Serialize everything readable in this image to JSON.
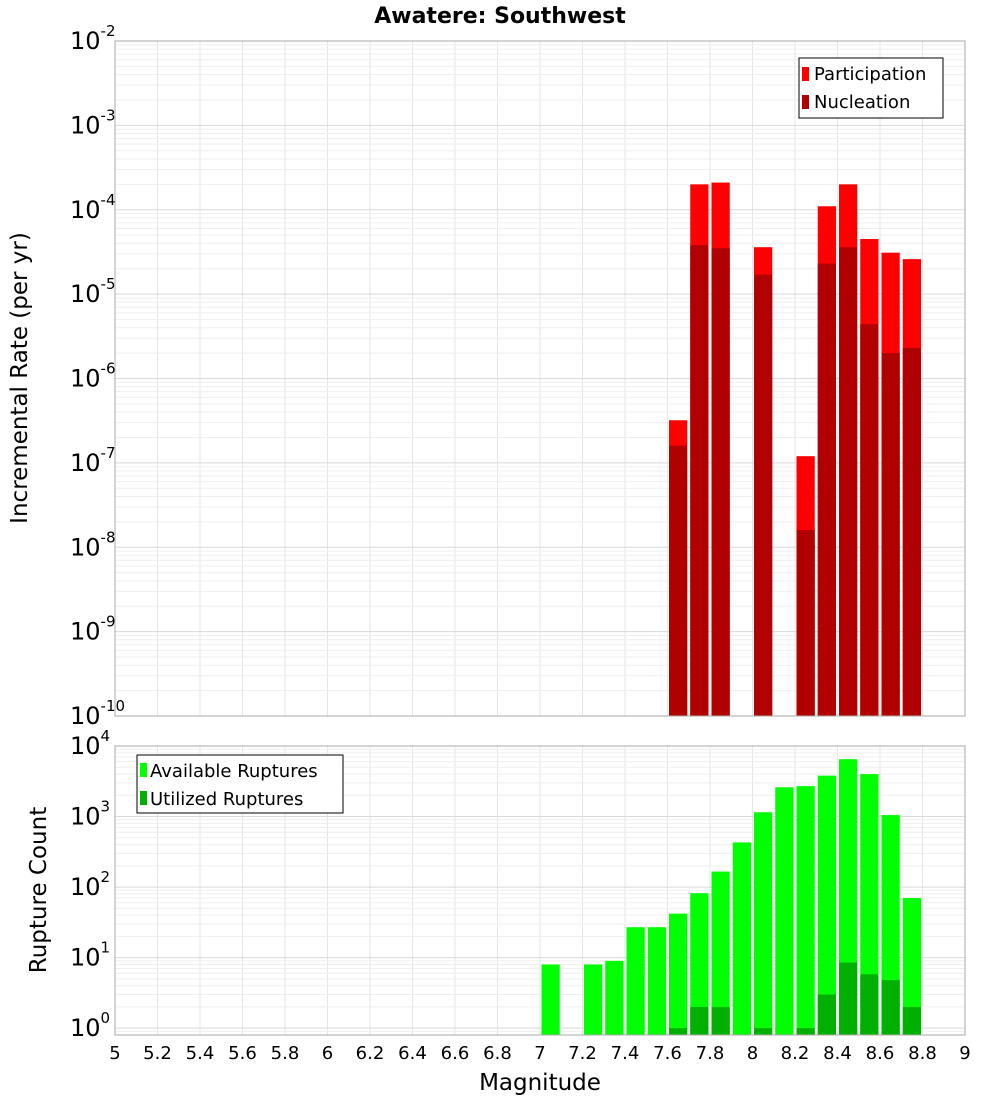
{
  "chart_data": [
    {
      "type": "bar",
      "title": "Awatere: Southwest",
      "xlabel": "",
      "ylabel": "Incremental Rate (per yr)",
      "yscale": "log",
      "xlim": [
        5,
        9
      ],
      "ylim": [
        1e-10,
        0.01
      ],
      "y_ticks": [
        {
          "base": "10",
          "exp": "-2"
        },
        {
          "base": "10",
          "exp": "-3"
        },
        {
          "base": "10",
          "exp": "-4"
        },
        {
          "base": "10",
          "exp": "-5"
        },
        {
          "base": "10",
          "exp": "-6"
        },
        {
          "base": "10",
          "exp": "-7"
        },
        {
          "base": "10",
          "exp": "-8"
        },
        {
          "base": "10",
          "exp": "-9"
        },
        {
          "base": "10",
          "exp": "-10"
        }
      ],
      "grid": true,
      "legend_position": "top-right",
      "colors": {
        "Participation": "#ff0000",
        "Nucleation": "#b00000"
      },
      "x": [
        7.65,
        7.75,
        7.85,
        8.05,
        8.25,
        8.35,
        8.45,
        8.55,
        8.65,
        8.75
      ],
      "series": [
        {
          "name": "Participation",
          "values": [
            3.2e-07,
            0.0002,
            0.00021,
            3.6e-05,
            1.2e-07,
            0.00011,
            0.0002,
            4.5e-05,
            3.1e-05,
            2.6e-05
          ]
        },
        {
          "name": "Nucleation",
          "values": [
            1.6e-07,
            3.8e-05,
            3.5e-05,
            1.7e-05,
            1.6e-08,
            2.3e-05,
            3.6e-05,
            4.4e-06,
            2e-06,
            2.3e-06
          ]
        }
      ]
    },
    {
      "type": "bar",
      "title": "",
      "xlabel": "Magnitude",
      "ylabel": "Rupture Count",
      "yscale": "log",
      "xlim": [
        5,
        9
      ],
      "ylim": [
        0.8,
        10000
      ],
      "x_ticks": [
        "5",
        "5.2",
        "5.4",
        "5.6",
        "5.8",
        "6",
        "6.2",
        "6.4",
        "6.6",
        "6.8",
        "7",
        "7.2",
        "7.4",
        "7.6",
        "7.8",
        "8",
        "8.2",
        "8.4",
        "8.6",
        "8.8",
        "9"
      ],
      "y_ticks": [
        {
          "value": 10000,
          "base": "10",
          "exp": "4"
        },
        {
          "value": 1000,
          "base": "10",
          "exp": "3"
        },
        {
          "value": 100,
          "base": "10",
          "exp": "2"
        },
        {
          "value": 10,
          "base": "10",
          "exp": "1"
        },
        {
          "value": 1,
          "base": "10",
          "exp": "0"
        }
      ],
      "grid": true,
      "legend_position": "top-left",
      "colors": {
        "Available Ruptures": "#00ff00",
        "Utilized Ruptures": "#00b000"
      },
      "x": [
        7.05,
        7.25,
        7.35,
        7.45,
        7.55,
        7.65,
        7.75,
        7.85,
        7.95,
        8.05,
        8.15,
        8.25,
        8.35,
        8.45,
        8.55,
        8.65,
        8.75
      ],
      "series": [
        {
          "name": "Available Ruptures",
          "values": [
            8,
            8,
            9,
            27,
            27,
            42,
            82,
            166,
            430,
            1150,
            2600,
            2700,
            3800,
            6500,
            4000,
            1050,
            70
          ]
        },
        {
          "name": "Utilized Ruptures",
          "values": [
            0,
            0,
            0,
            0,
            0,
            1,
            2,
            2,
            0,
            1,
            0,
            1,
            3,
            8.5,
            5.8,
            4.8,
            2
          ]
        }
      ]
    }
  ]
}
